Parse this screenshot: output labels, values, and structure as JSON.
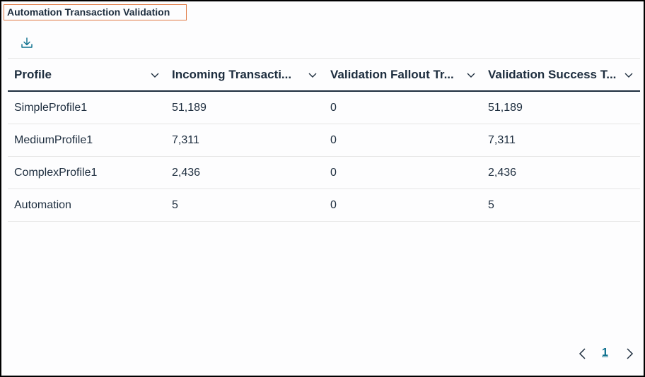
{
  "title": "Automation Transaction Validation",
  "toolbar": {
    "download_icon": "download-icon"
  },
  "table": {
    "columns": [
      {
        "label": "Profile"
      },
      {
        "label": "Incoming Transacti..."
      },
      {
        "label": "Validation Fallout Tr..."
      },
      {
        "label": "Validation Success T..."
      }
    ],
    "rows": [
      {
        "profile": "SimpleProfile1",
        "incoming": "51,189",
        "fallout": "0",
        "success": "51,189"
      },
      {
        "profile": "MediumProfile1",
        "incoming": "7,311",
        "fallout": "0",
        "success": "7,311"
      },
      {
        "profile": "ComplexProfile1",
        "incoming": "2,436",
        "fallout": "0",
        "success": "2,436"
      },
      {
        "profile": "Automation",
        "incoming": "5",
        "fallout": "0",
        "success": "5"
      }
    ]
  },
  "pagination": {
    "current_page": "1"
  },
  "colors": {
    "title_border": "#e07a45",
    "accent": "#0a6e8c",
    "text": "#1d2d3e"
  }
}
